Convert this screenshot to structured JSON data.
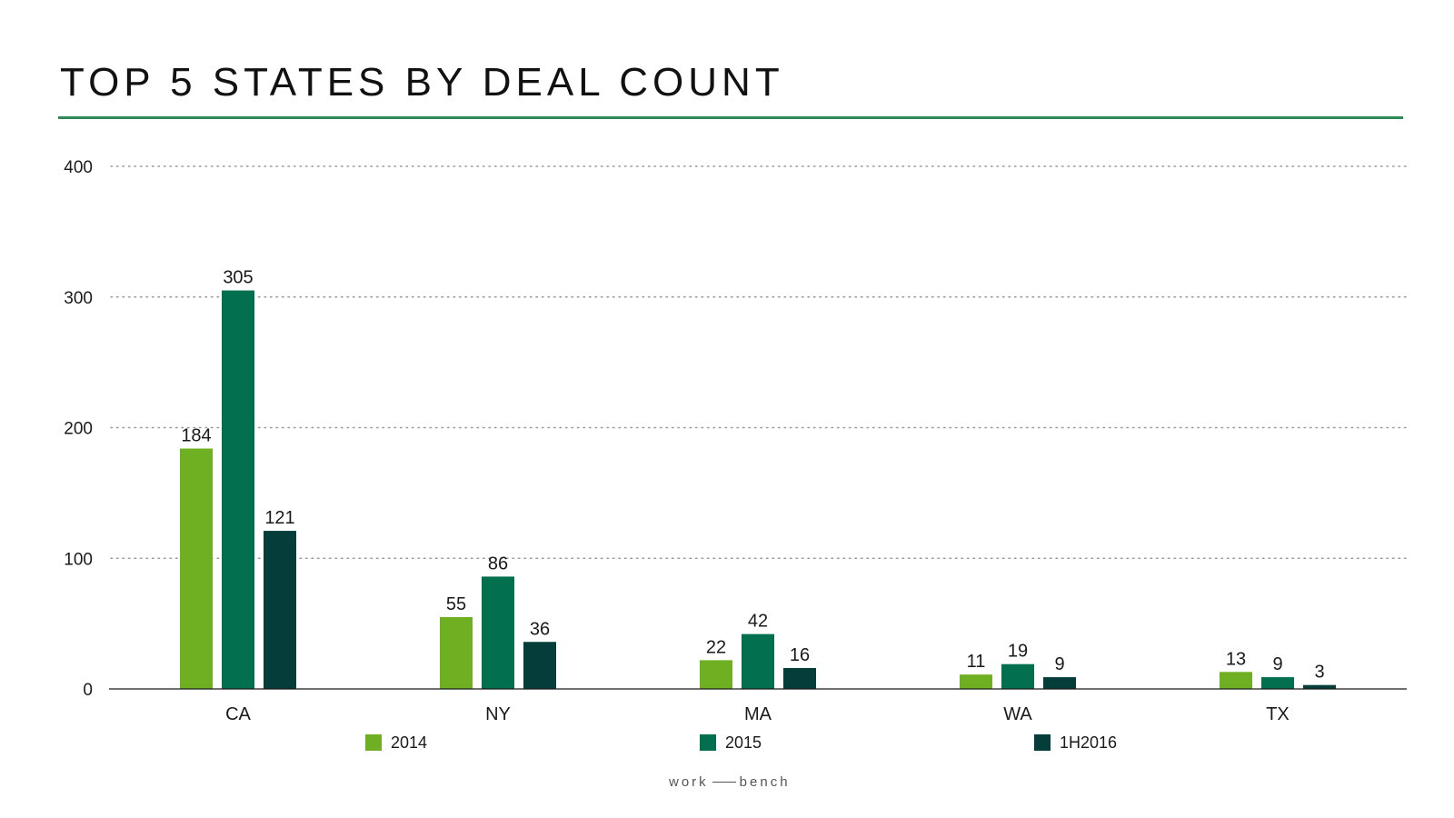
{
  "title": "TOP 5 STATES BY DEAL COUNT",
  "brand": {
    "left": "work",
    "right": "bench"
  },
  "colors": {
    "accent_rule": "#2e8b57",
    "series_2014": "#6fb023",
    "series_2015": "#02704e",
    "series_1h2016": "#053d3a"
  },
  "chart_data": {
    "type": "bar",
    "categories": [
      "CA",
      "NY",
      "MA",
      "WA",
      "TX"
    ],
    "series": [
      {
        "name": "2014",
        "values": [
          184,
          55,
          22,
          11,
          13
        ],
        "color": "#6fb023"
      },
      {
        "name": "2015",
        "values": [
          305,
          86,
          42,
          19,
          9
        ],
        "color": "#02704e"
      },
      {
        "name": "1H2016",
        "values": [
          121,
          36,
          16,
          9,
          3
        ],
        "color": "#053d3a"
      }
    ],
    "yticks": [
      0,
      100,
      200,
      300,
      400
    ],
    "ylim": [
      0,
      400
    ],
    "grid": true,
    "data_labels": true,
    "legend_position": "bottom"
  }
}
